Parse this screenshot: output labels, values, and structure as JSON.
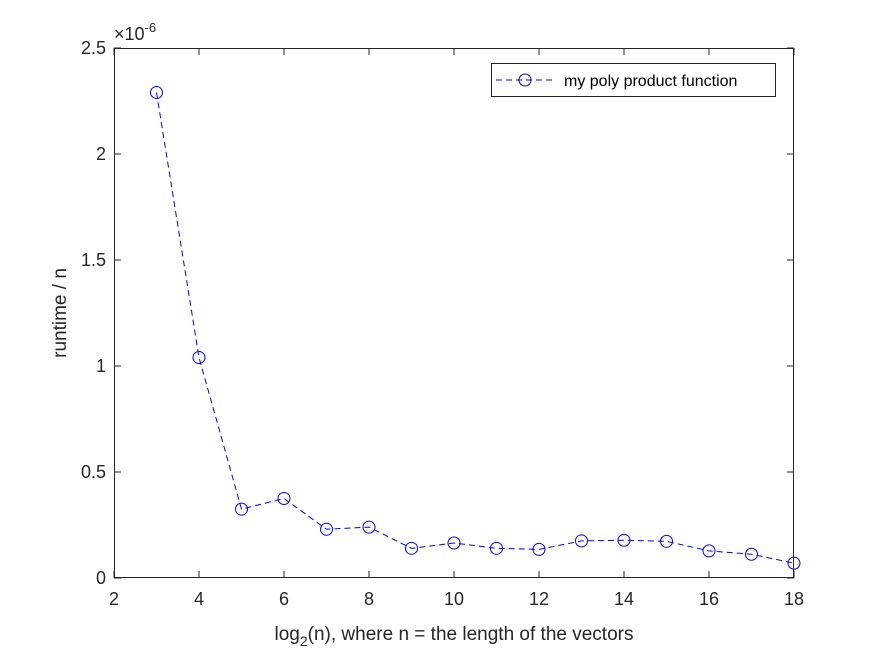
{
  "chart_data": {
    "type": "line",
    "title": "",
    "xlabel": {
      "main": "log",
      "subscript": "2",
      "rest": "(n), where n = the length of the vectors"
    },
    "ylabel": "runtime / n",
    "y_exponent_label": {
      "base": "×10",
      "exponent": "-6"
    },
    "xlim": [
      2,
      18
    ],
    "ylim": [
      0,
      2.5
    ],
    "x_ticks": [
      "2",
      "4",
      "6",
      "8",
      "10",
      "12",
      "14",
      "16",
      "18"
    ],
    "y_ticks": [
      "0",
      "0.5",
      "1",
      "1.5",
      "2",
      "2.5"
    ],
    "grid": false,
    "legend_location": "top-right",
    "series": [
      {
        "name": "my poly product function",
        "color": "#0000ff",
        "line_style": "dashed",
        "marker": "circle",
        "x": [
          3,
          4,
          5,
          6,
          7,
          8,
          9,
          10,
          11,
          12,
          13,
          14,
          15,
          16,
          17,
          18
        ],
        "y": [
          2.29,
          1.04,
          0.325,
          0.375,
          0.23,
          0.24,
          0.14,
          0.165,
          0.14,
          0.135,
          0.175,
          0.178,
          0.173,
          0.128,
          0.112,
          0.07
        ]
      }
    ]
  }
}
